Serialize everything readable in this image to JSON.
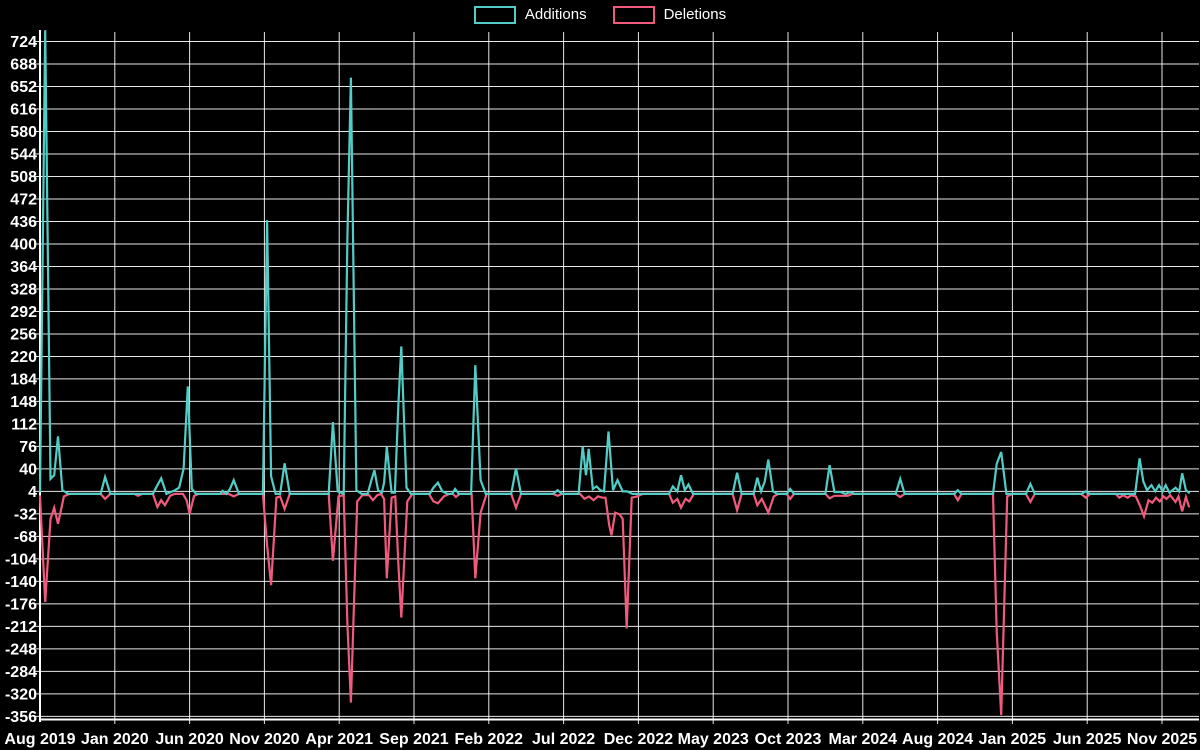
{
  "chart_data": {
    "type": "line",
    "title": "",
    "legend": {
      "position": "top",
      "entries": [
        {
          "name": "Additions",
          "color": "#52cdc6"
        },
        {
          "name": "Deletions",
          "color": "#f05a7d"
        }
      ]
    },
    "x_axis": {
      "unit": "months since Aug 2019",
      "tick_labels": [
        "Aug 2019",
        "Jan 2020",
        "Jun 2020",
        "Nov 2020",
        "Apr 2021",
        "Sep 2021",
        "Feb 2022",
        "Jul 2022",
        "Dec 2022",
        "May 2023",
        "Oct 2023",
        "Mar 2024",
        "Aug 2024",
        "Jan 2025",
        "Jun 2025",
        "Nov 2025"
      ],
      "tick_months": [
        0,
        5,
        10,
        15,
        20,
        25,
        30,
        35,
        40,
        45,
        50,
        55,
        60,
        65,
        70,
        75
      ],
      "domain_months": [
        0,
        77.6
      ]
    },
    "y_axis": {
      "tick_values": [
        724,
        688,
        652,
        616,
        580,
        544,
        508,
        472,
        436,
        400,
        364,
        328,
        292,
        256,
        220,
        184,
        148,
        112,
        76,
        40,
        4,
        -32,
        -68,
        -104,
        -140,
        -176,
        -212,
        -248,
        -284,
        -320,
        -356
      ],
      "domain": [
        -361,
        742.4
      ],
      "grid": true
    },
    "series": [
      {
        "name": "Additions",
        "color": "#52cdc6",
        "points": [
          [
            0,
            4
          ],
          [
            0.35,
            742
          ],
          [
            0.7,
            24
          ],
          [
            0.95,
            30
          ],
          [
            1.2,
            92
          ],
          [
            1.5,
            6
          ],
          [
            1.9,
            0
          ],
          [
            4.05,
            0
          ],
          [
            4.35,
            27
          ],
          [
            4.7,
            0
          ],
          [
            7.55,
            0
          ],
          [
            7.85,
            14
          ],
          [
            8.1,
            25
          ],
          [
            8.45,
            0
          ],
          [
            8.95,
            5
          ],
          [
            9.3,
            10
          ],
          [
            9.6,
            40
          ],
          [
            9.88,
            172
          ],
          [
            10.15,
            8
          ],
          [
            10.45,
            0
          ],
          [
            12.05,
            0
          ],
          [
            12.2,
            5
          ],
          [
            12.45,
            0
          ],
          [
            12.7,
            8
          ],
          [
            12.95,
            22
          ],
          [
            13.3,
            0
          ],
          [
            14.9,
            0
          ],
          [
            15.18,
            438
          ],
          [
            15.45,
            28
          ],
          [
            15.75,
            0
          ],
          [
            16.05,
            0
          ],
          [
            16.35,
            49
          ],
          [
            16.7,
            0
          ],
          [
            19.3,
            0
          ],
          [
            19.58,
            115
          ],
          [
            19.9,
            4
          ],
          [
            20.3,
            0
          ],
          [
            20.55,
            410
          ],
          [
            20.78,
            666
          ],
          [
            21.15,
            6
          ],
          [
            21.5,
            0
          ],
          [
            21.9,
            0
          ],
          [
            22.15,
            22
          ],
          [
            22.35,
            38
          ],
          [
            22.6,
            6
          ],
          [
            22.85,
            2
          ],
          [
            23.0,
            18
          ],
          [
            23.18,
            75
          ],
          [
            23.5,
            2
          ],
          [
            23.72,
            2
          ],
          [
            23.95,
            140
          ],
          [
            24.15,
            236
          ],
          [
            24.5,
            10
          ],
          [
            24.8,
            0
          ],
          [
            26.05,
            0
          ],
          [
            26.3,
            10
          ],
          [
            26.6,
            18
          ],
          [
            26.9,
            4
          ],
          [
            27.25,
            0
          ],
          [
            27.55,
            0
          ],
          [
            27.75,
            8
          ],
          [
            28.0,
            0
          ],
          [
            28.82,
            0
          ],
          [
            29.1,
            206
          ],
          [
            29.45,
            22
          ],
          [
            29.8,
            0
          ],
          [
            31.5,
            0
          ],
          [
            31.82,
            41
          ],
          [
            32.15,
            0
          ],
          [
            34.3,
            0
          ],
          [
            34.6,
            6
          ],
          [
            34.9,
            0
          ],
          [
            36.0,
            0
          ],
          [
            36.28,
            76
          ],
          [
            36.5,
            30
          ],
          [
            36.68,
            72
          ],
          [
            36.95,
            8
          ],
          [
            37.2,
            12
          ],
          [
            37.45,
            6
          ],
          [
            37.7,
            4
          ],
          [
            38.0,
            100
          ],
          [
            38.3,
            6
          ],
          [
            38.6,
            22
          ],
          [
            38.95,
            4
          ],
          [
            39.25,
            4
          ],
          [
            39.6,
            0
          ],
          [
            42.05,
            0
          ],
          [
            42.3,
            12
          ],
          [
            42.6,
            4
          ],
          [
            42.85,
            30
          ],
          [
            43.1,
            6
          ],
          [
            43.35,
            15
          ],
          [
            43.65,
            0
          ],
          [
            46.3,
            0
          ],
          [
            46.6,
            34
          ],
          [
            46.9,
            0
          ],
          [
            47.7,
            0
          ],
          [
            47.95,
            26
          ],
          [
            48.2,
            4
          ],
          [
            48.45,
            20
          ],
          [
            48.68,
            55
          ],
          [
            49.0,
            4
          ],
          [
            49.3,
            0
          ],
          [
            49.9,
            0
          ],
          [
            50.15,
            8
          ],
          [
            50.4,
            0
          ],
          [
            52.5,
            0
          ],
          [
            52.78,
            46
          ],
          [
            53.1,
            3
          ],
          [
            53.5,
            3
          ],
          [
            53.85,
            0
          ],
          [
            54.15,
            3
          ],
          [
            54.45,
            0
          ],
          [
            57.2,
            0
          ],
          [
            57.5,
            24
          ],
          [
            57.8,
            0
          ],
          [
            61.1,
            0
          ],
          [
            61.35,
            6
          ],
          [
            61.6,
            0
          ],
          [
            63.7,
            0
          ],
          [
            63.95,
            48
          ],
          [
            64.25,
            67
          ],
          [
            64.6,
            0
          ],
          [
            65.9,
            0
          ],
          [
            66.2,
            16
          ],
          [
            66.5,
            0
          ],
          [
            69.6,
            0
          ],
          [
            69.9,
            4
          ],
          [
            70.2,
            0
          ],
          [
            73.2,
            0
          ],
          [
            73.5,
            57
          ],
          [
            73.75,
            20
          ],
          [
            74.0,
            6
          ],
          [
            74.3,
            14
          ],
          [
            74.55,
            4
          ],
          [
            74.8,
            14
          ],
          [
            75.05,
            4
          ],
          [
            75.25,
            14
          ],
          [
            75.5,
            2
          ],
          [
            75.9,
            10
          ],
          [
            76.15,
            4
          ],
          [
            76.35,
            33
          ],
          [
            76.6,
            6
          ],
          [
            76.8,
            2
          ]
        ]
      },
      {
        "name": "Deletions",
        "color": "#f05a7d",
        "points": [
          [
            0,
            -4
          ],
          [
            0.35,
            -173
          ],
          [
            0.7,
            -40
          ],
          [
            0.95,
            -22
          ],
          [
            1.2,
            -48
          ],
          [
            1.6,
            -4
          ],
          [
            1.95,
            0
          ],
          [
            4.05,
            0
          ],
          [
            4.35,
            -8
          ],
          [
            4.7,
            0
          ],
          [
            6.3,
            0
          ],
          [
            6.55,
            -3
          ],
          [
            6.85,
            0
          ],
          [
            7.55,
            0
          ],
          [
            7.85,
            -21
          ],
          [
            8.1,
            -10
          ],
          [
            8.35,
            -18
          ],
          [
            8.7,
            -3
          ],
          [
            9.0,
            0
          ],
          [
            9.55,
            0
          ],
          [
            9.8,
            -10
          ],
          [
            10.0,
            -32
          ],
          [
            10.3,
            -3
          ],
          [
            10.6,
            0
          ],
          [
            12.6,
            0
          ],
          [
            12.95,
            -4
          ],
          [
            13.3,
            0
          ],
          [
            14.9,
            0
          ],
          [
            15.18,
            -82
          ],
          [
            15.45,
            -146
          ],
          [
            15.8,
            -6
          ],
          [
            16.05,
            -4
          ],
          [
            16.35,
            -24
          ],
          [
            16.7,
            0
          ],
          [
            19.3,
            0
          ],
          [
            19.58,
            -107
          ],
          [
            19.95,
            -4
          ],
          [
            20.3,
            -2
          ],
          [
            20.55,
            -208
          ],
          [
            20.78,
            -334
          ],
          [
            21.2,
            -12
          ],
          [
            21.55,
            -2
          ],
          [
            22.0,
            -2
          ],
          [
            22.25,
            -10
          ],
          [
            22.55,
            -2
          ],
          [
            22.8,
            0
          ],
          [
            23.0,
            -8
          ],
          [
            23.18,
            -135
          ],
          [
            23.5,
            -6
          ],
          [
            23.75,
            -4
          ],
          [
            23.95,
            -110
          ],
          [
            24.15,
            -198
          ],
          [
            24.55,
            -12
          ],
          [
            24.9,
            0
          ],
          [
            26.0,
            0
          ],
          [
            26.3,
            -12
          ],
          [
            26.6,
            -15
          ],
          [
            27.0,
            -4
          ],
          [
            27.35,
            0
          ],
          [
            27.6,
            0
          ],
          [
            27.8,
            -5
          ],
          [
            28.05,
            0
          ],
          [
            28.85,
            0
          ],
          [
            29.1,
            -135
          ],
          [
            29.45,
            -30
          ],
          [
            29.85,
            0
          ],
          [
            31.5,
            0
          ],
          [
            31.82,
            -22
          ],
          [
            32.15,
            0
          ],
          [
            34.3,
            0
          ],
          [
            34.6,
            -3
          ],
          [
            34.9,
            0
          ],
          [
            36.1,
            0
          ],
          [
            36.4,
            -8
          ],
          [
            36.7,
            -4
          ],
          [
            37.0,
            -10
          ],
          [
            37.3,
            -4
          ],
          [
            37.6,
            -6
          ],
          [
            37.8,
            -6
          ],
          [
            38.05,
            -50
          ],
          [
            38.2,
            -66
          ],
          [
            38.45,
            -30
          ],
          [
            38.75,
            -33
          ],
          [
            38.95,
            -40
          ],
          [
            39.22,
            -215
          ],
          [
            39.55,
            -6
          ],
          [
            39.9,
            -4
          ],
          [
            40.3,
            0
          ],
          [
            42.05,
            0
          ],
          [
            42.3,
            -14
          ],
          [
            42.6,
            -8
          ],
          [
            42.85,
            -22
          ],
          [
            43.15,
            -8
          ],
          [
            43.4,
            -12
          ],
          [
            43.7,
            0
          ],
          [
            46.3,
            0
          ],
          [
            46.6,
            -26
          ],
          [
            46.9,
            0
          ],
          [
            47.7,
            0
          ],
          [
            47.95,
            -18
          ],
          [
            48.25,
            -8
          ],
          [
            48.68,
            -30
          ],
          [
            49.05,
            -4
          ],
          [
            49.35,
            0
          ],
          [
            49.9,
            0
          ],
          [
            50.15,
            -8
          ],
          [
            50.4,
            0
          ],
          [
            52.5,
            0
          ],
          [
            52.78,
            -7
          ],
          [
            53.1,
            -3
          ],
          [
            53.6,
            -3
          ],
          [
            54.0,
            -3
          ],
          [
            54.3,
            0
          ],
          [
            57.2,
            0
          ],
          [
            57.5,
            -5
          ],
          [
            57.8,
            0
          ],
          [
            61.1,
            0
          ],
          [
            61.35,
            -10
          ],
          [
            61.6,
            0
          ],
          [
            63.7,
            0
          ],
          [
            63.95,
            -220
          ],
          [
            64.25,
            -354
          ],
          [
            64.65,
            -4
          ],
          [
            65.0,
            0
          ],
          [
            65.9,
            0
          ],
          [
            66.2,
            -13
          ],
          [
            66.5,
            0
          ],
          [
            69.6,
            0
          ],
          [
            69.9,
            -6
          ],
          [
            70.2,
            0
          ],
          [
            71.9,
            0
          ],
          [
            72.15,
            -6
          ],
          [
            72.4,
            -2
          ],
          [
            72.7,
            -6
          ],
          [
            72.95,
            -2
          ],
          [
            73.25,
            -4
          ],
          [
            73.55,
            -20
          ],
          [
            73.8,
            -36
          ],
          [
            74.1,
            -10
          ],
          [
            74.35,
            -14
          ],
          [
            74.6,
            -6
          ],
          [
            74.85,
            -12
          ],
          [
            75.1,
            -4
          ],
          [
            75.3,
            -8
          ],
          [
            75.55,
            -2
          ],
          [
            75.9,
            -13
          ],
          [
            76.1,
            -4
          ],
          [
            76.35,
            -28
          ],
          [
            76.6,
            -5
          ],
          [
            76.8,
            -20
          ]
        ]
      }
    ],
    "style": {
      "background": "#000000",
      "grid_color": "rgba(255,255,255,0.9)",
      "axis_color": "#ffffff",
      "text_color": "#ffffff"
    }
  }
}
